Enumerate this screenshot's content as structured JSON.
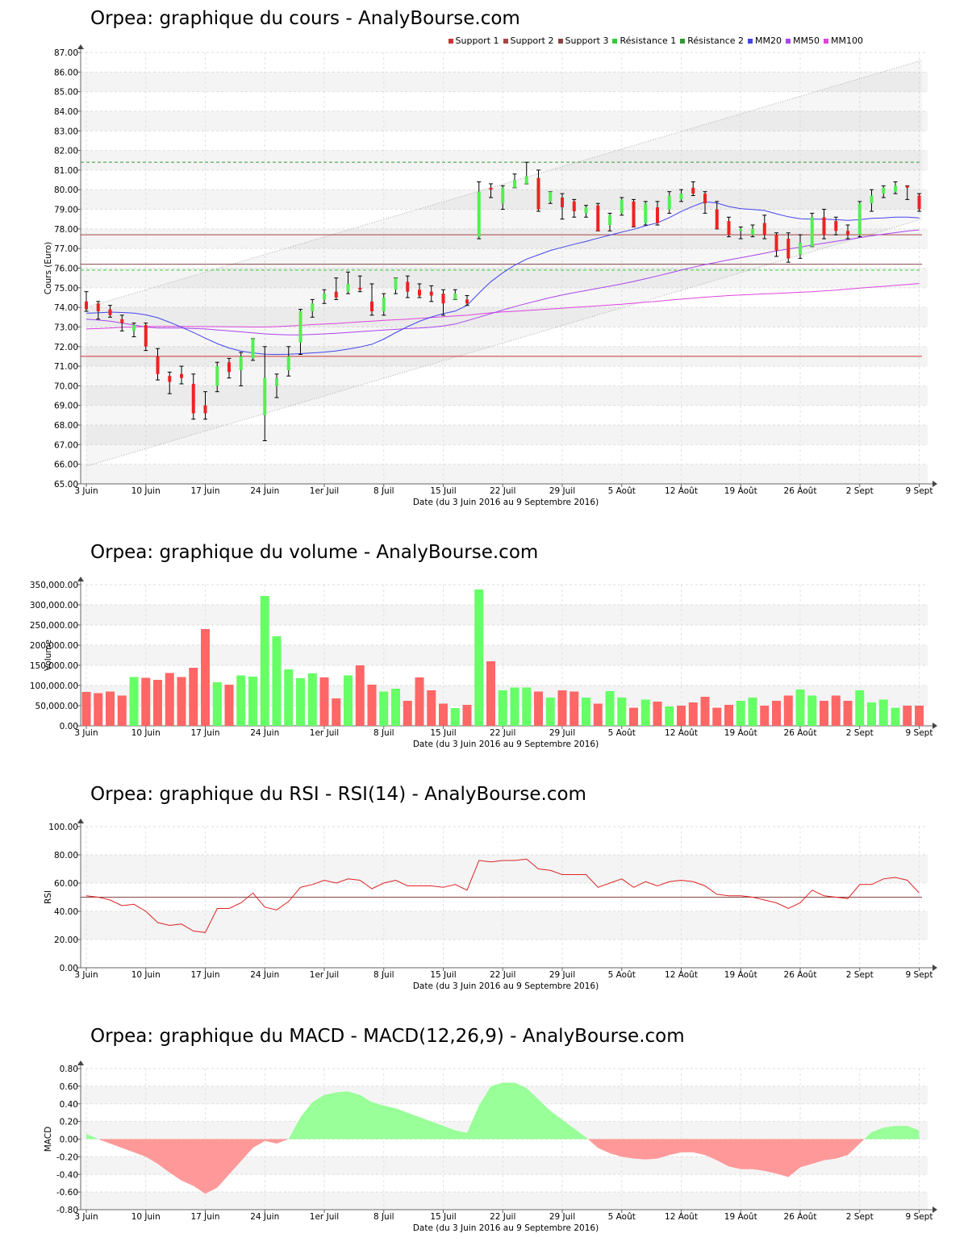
{
  "colors": {
    "bull": "#55ee55",
    "bear": "#ee2222",
    "vol_up": "#66ff66",
    "vol_down": "#ff6666",
    "support1": "#cc3333",
    "support2": "#aa4444",
    "support3": "#884444",
    "resistance1": "#33cc33",
    "resistance2": "#339933",
    "mm20": "#4444ee",
    "mm50": "#aa44ee",
    "mm100": "#dd44dd",
    "rsi": "#dd2222",
    "macd_pos": "#99ff99",
    "macd_neg": "#ff9999"
  },
  "x_tick_labels": [
    "3 Juin",
    "10 Juin",
    "17 Juin",
    "24 Juin",
    "1er Juil",
    "8 Juil",
    "15 Juil",
    "22 Juil",
    "29 Juil",
    "5 Août",
    "12 Août",
    "19 Août",
    "26 Août",
    "2 Sept",
    "9 Sept"
  ],
  "x_tick_indices": [
    0,
    5,
    10,
    15,
    20,
    25,
    30,
    35,
    40,
    45,
    50,
    55,
    60,
    65,
    70
  ],
  "xlabel": "Date (du 3 Juin 2016 au 9 Septembre 2016)",
  "chart_data": [
    {
      "type": "candlestick",
      "title": "Orpea: graphique du cours - AnalyBourse.com",
      "ylabel": "Cours (Euro)",
      "ylim": [
        65,
        87
      ],
      "yticks": [
        "65.00",
        "66.00",
        "67.00",
        "68.00",
        "69.00",
        "70.00",
        "71.00",
        "72.00",
        "73.00",
        "74.00",
        "75.00",
        "76.00",
        "77.00",
        "78.00",
        "79.00",
        "80.00",
        "81.00",
        "82.00",
        "83.00",
        "84.00",
        "85.00",
        "86.00",
        "87.00"
      ],
      "legend": [
        "Support 1",
        "Support 2",
        "Support 3",
        "Résistance 1",
        "Résistance 2",
        "MM20",
        "MM50",
        "MM100"
      ],
      "levels": {
        "support1": 71.5,
        "support2": 77.7,
        "support3": 76.2,
        "resistance1": 75.9,
        "resistance2": 81.4
      },
      "trend_channel": {
        "upper_start": 74.0,
        "upper_end": 86.6,
        "lower_start": 65.9,
        "lower_end": 78.5
      },
      "ohlc": [
        [
          74.3,
          74.8,
          73.8,
          73.9
        ],
        [
          74.2,
          74.3,
          73.4,
          73.8
        ],
        [
          73.9,
          74.1,
          73.5,
          73.6
        ],
        [
          73.4,
          73.6,
          72.8,
          73.2
        ],
        [
          72.8,
          73.2,
          72.5,
          73.1
        ],
        [
          73.1,
          73.2,
          71.8,
          72.0
        ],
        [
          71.5,
          71.9,
          70.3,
          70.6
        ],
        [
          70.5,
          70.7,
          69.6,
          70.2
        ],
        [
          70.6,
          71.0,
          70.1,
          70.4
        ],
        [
          70.1,
          70.6,
          68.3,
          68.6
        ],
        [
          69.0,
          69.7,
          68.3,
          68.6
        ],
        [
          70.0,
          71.2,
          69.7,
          71.0
        ],
        [
          71.2,
          71.4,
          70.4,
          70.7
        ],
        [
          70.8,
          71.7,
          70.0,
          71.5
        ],
        [
          71.4,
          72.4,
          71.3,
          72.4
        ],
        [
          68.5,
          72.0,
          67.2,
          70.4
        ],
        [
          70.0,
          70.6,
          69.4,
          70.4
        ],
        [
          70.8,
          72.0,
          70.5,
          71.5
        ],
        [
          72.2,
          73.9,
          71.6,
          73.8
        ],
        [
          73.8,
          74.4,
          73.5,
          74.2
        ],
        [
          74.4,
          74.9,
          74.2,
          74.7
        ],
        [
          74.8,
          75.5,
          74.4,
          74.5
        ],
        [
          74.8,
          75.8,
          74.7,
          75.2
        ],
        [
          75.0,
          75.6,
          74.8,
          74.9
        ],
        [
          74.3,
          75.2,
          73.6,
          73.8
        ],
        [
          73.8,
          74.7,
          73.6,
          74.5
        ],
        [
          74.9,
          75.5,
          74.7,
          75.5
        ],
        [
          75.3,
          75.6,
          74.5,
          74.8
        ],
        [
          74.9,
          75.2,
          74.5,
          74.6
        ],
        [
          74.8,
          75.1,
          74.3,
          74.6
        ],
        [
          74.7,
          74.9,
          73.6,
          74.2
        ],
        [
          74.4,
          74.9,
          74.4,
          74.7
        ],
        [
          74.4,
          74.6,
          74.1,
          74.2
        ],
        [
          77.6,
          80.4,
          77.5,
          79.9
        ],
        [
          80.1,
          80.3,
          79.6,
          80.0
        ],
        [
          79.3,
          80.2,
          79.0,
          80.1
        ],
        [
          80.1,
          80.8,
          80.1,
          80.5
        ],
        [
          80.3,
          81.4,
          80.3,
          80.7
        ],
        [
          80.6,
          81.0,
          78.9,
          79.0
        ],
        [
          79.4,
          79.9,
          79.3,
          79.9
        ],
        [
          79.6,
          79.8,
          78.5,
          79.1
        ],
        [
          79.4,
          79.5,
          78.6,
          78.9
        ],
        [
          78.8,
          79.2,
          78.6,
          79.1
        ],
        [
          79.2,
          79.3,
          77.9,
          77.9
        ],
        [
          78.2,
          78.8,
          77.9,
          78.7
        ],
        [
          78.8,
          79.6,
          78.7,
          79.5
        ],
        [
          79.4,
          79.5,
          78.1,
          78.1
        ],
        [
          78.3,
          79.4,
          78.2,
          79.3
        ],
        [
          79.1,
          79.4,
          78.2,
          78.3
        ],
        [
          79.0,
          79.9,
          78.8,
          79.7
        ],
        [
          79.5,
          80.0,
          79.4,
          79.8
        ],
        [
          80.1,
          80.4,
          79.7,
          79.8
        ],
        [
          79.8,
          79.9,
          78.8,
          79.3
        ],
        [
          79.0,
          79.4,
          78.0,
          78.0
        ],
        [
          78.4,
          78.6,
          77.6,
          77.7
        ],
        [
          77.9,
          78.1,
          77.5,
          78.0
        ],
        [
          77.7,
          78.2,
          77.6,
          78.0
        ],
        [
          78.3,
          78.7,
          77.5,
          77.7
        ],
        [
          77.7,
          77.8,
          76.6,
          76.9
        ],
        [
          77.5,
          77.8,
          76.3,
          76.5
        ],
        [
          76.7,
          77.7,
          76.5,
          77.3
        ],
        [
          77.1,
          78.8,
          77.1,
          78.6
        ],
        [
          78.6,
          79.0,
          77.5,
          77.7
        ],
        [
          78.4,
          78.6,
          77.7,
          77.9
        ],
        [
          77.9,
          78.2,
          77.5,
          77.7
        ],
        [
          77.7,
          79.4,
          77.6,
          79.3
        ],
        [
          79.3,
          80.0,
          78.9,
          79.7
        ],
        [
          79.8,
          80.2,
          79.6,
          80.1
        ],
        [
          79.9,
          80.4,
          79.8,
          80.2
        ],
        [
          80.2,
          80.2,
          79.5,
          80.1
        ],
        [
          79.7,
          79.8,
          78.9,
          79.0
        ]
      ],
      "mm20": [
        73.7,
        73.72,
        73.76,
        73.74,
        73.71,
        73.62,
        73.47,
        73.24,
        72.99,
        72.72,
        72.43,
        72.15,
        71.93,
        71.77,
        71.68,
        71.61,
        71.6,
        71.61,
        71.64,
        71.68,
        71.72,
        71.78,
        71.87,
        71.98,
        72.12,
        72.38,
        72.71,
        73.02,
        73.29,
        73.51,
        73.68,
        73.81,
        74.1,
        74.73,
        75.31,
        75.76,
        76.15,
        76.46,
        76.68,
        76.9,
        77.06,
        77.22,
        77.36,
        77.53,
        77.68,
        77.84,
        77.98,
        78.16,
        78.31,
        78.58,
        78.89,
        79.16,
        79.39,
        79.32,
        79.14,
        79.03,
        78.99,
        78.94,
        78.77,
        78.62,
        78.52,
        78.5,
        78.5,
        78.47,
        78.44,
        78.47,
        78.54,
        78.56,
        78.6,
        78.6,
        78.56
      ],
      "mm50": [
        73.4,
        73.35,
        73.3,
        73.2,
        73.1,
        73.0,
        72.95,
        72.95,
        72.95,
        72.92,
        72.9,
        72.85,
        72.8,
        72.75,
        72.7,
        72.65,
        72.62,
        72.6,
        72.6,
        72.62,
        72.65,
        72.68,
        72.72,
        72.76,
        72.8,
        72.84,
        72.88,
        72.92,
        72.95,
        72.99,
        73.05,
        73.15,
        73.32,
        73.5,
        73.68,
        73.86,
        74.04,
        74.2,
        74.35,
        74.5,
        74.63,
        74.75,
        74.86,
        74.97,
        75.08,
        75.2,
        75.32,
        75.46,
        75.6,
        75.75,
        75.9,
        76.05,
        76.18,
        76.3,
        76.42,
        76.53,
        76.64,
        76.76,
        76.88,
        76.98,
        77.07,
        77.18,
        77.27,
        77.37,
        77.46,
        77.55,
        77.65,
        77.73,
        77.81,
        77.89,
        77.95
      ],
      "mm100": [
        72.9,
        72.92,
        72.95,
        72.98,
        73.0,
        73.02,
        73.03,
        73.03,
        73.03,
        73.02,
        73.02,
        73.02,
        73.01,
        73.01,
        73.0,
        73.0,
        73.02,
        73.05,
        73.08,
        73.12,
        73.15,
        73.18,
        73.22,
        73.26,
        73.3,
        73.34,
        73.37,
        73.4,
        73.44,
        73.48,
        73.52,
        73.56,
        73.6,
        73.66,
        73.72,
        73.77,
        73.8,
        73.84,
        73.88,
        73.92,
        73.96,
        74.0,
        74.04,
        74.08,
        74.12,
        74.16,
        74.21,
        74.26,
        74.31,
        74.37,
        74.42,
        74.47,
        74.52,
        74.56,
        74.6,
        74.63,
        74.66,
        74.69,
        74.71,
        74.74,
        74.77,
        74.8,
        74.84,
        74.88,
        74.93,
        74.98,
        75.03,
        75.07,
        75.12,
        75.17,
        75.22
      ]
    },
    {
      "type": "bar",
      "title": "Orpea: graphique du volume - AnalyBourse.com",
      "ylabel": "Volume",
      "ylim": [
        0,
        350000
      ],
      "yticks": [
        "0.00",
        "50,000.00",
        "100,000.00",
        "150,000.00",
        "200,000.00",
        "250,000.00",
        "300,000.00",
        "350,000.00"
      ],
      "values": [
        84000,
        81000,
        85000,
        75000,
        121000,
        119000,
        114000,
        131000,
        121000,
        144000,
        240000,
        108000,
        102000,
        125000,
        122000,
        322000,
        222000,
        140000,
        118000,
        130000,
        120000,
        68000,
        125000,
        150000,
        102000,
        85000,
        92000,
        62000,
        120000,
        88000,
        55000,
        44000,
        52000,
        338000,
        160000,
        88000,
        95000,
        95000,
        85000,
        70000,
        88000,
        85000,
        70000,
        55000,
        86000,
        70000,
        45000,
        65000,
        60000,
        48000,
        50000,
        58000,
        72000,
        45000,
        52000,
        62000,
        70000,
        50000,
        62000,
        75000,
        90000,
        75000,
        62000,
        75000,
        62000,
        88000,
        58000,
        65000,
        45000,
        50000,
        50000
      ],
      "up": [
        false,
        false,
        false,
        false,
        true,
        false,
        false,
        false,
        false,
        false,
        false,
        true,
        false,
        true,
        true,
        true,
        true,
        true,
        true,
        true,
        false,
        false,
        true,
        false,
        false,
        true,
        true,
        false,
        false,
        false,
        false,
        true,
        false,
        true,
        false,
        true,
        true,
        true,
        false,
        true,
        false,
        false,
        true,
        false,
        true,
        true,
        false,
        true,
        false,
        true,
        false,
        false,
        false,
        false,
        false,
        true,
        true,
        false,
        false,
        false,
        true,
        true,
        false,
        false,
        false,
        true,
        true,
        true,
        true,
        false,
        false
      ]
    },
    {
      "type": "line",
      "title": "Orpea: graphique du RSI - RSI(14) - AnalyBourse.com",
      "ylabel": "RSI",
      "ylim": [
        0,
        100
      ],
      "yticks": [
        "0.00",
        "20.00",
        "40.00",
        "60.00",
        "80.00",
        "100.00"
      ],
      "reference_line": 50,
      "values": [
        51,
        50,
        48,
        44,
        45,
        40,
        32,
        30,
        31,
        26,
        25,
        42,
        42,
        46,
        53,
        43,
        41,
        47,
        57,
        59,
        62,
        60,
        63,
        62,
        56,
        60,
        62,
        58,
        58,
        58,
        57,
        59,
        55,
        76,
        75,
        76,
        76,
        77,
        70,
        69,
        66,
        66,
        66,
        57,
        60,
        63,
        57,
        61,
        58,
        61,
        62,
        61,
        58,
        52,
        51,
        51,
        50,
        48,
        46,
        42,
        46,
        55,
        51,
        50,
        49,
        59,
        59,
        63,
        64,
        62,
        53
      ]
    },
    {
      "type": "area",
      "title": "Orpea: graphique du MACD - MACD(12,26,9) - AnalyBourse.com",
      "ylabel": "MACD",
      "ylim": [
        -0.8,
        0.8
      ],
      "yticks": [
        "-0.80",
        "-0.60",
        "-0.40",
        "-0.20",
        "0.00",
        "0.20",
        "0.40",
        "0.60",
        "0.80"
      ],
      "values": [
        0.06,
        0.0,
        -0.05,
        -0.1,
        -0.15,
        -0.2,
        -0.28,
        -0.38,
        -0.47,
        -0.53,
        -0.62,
        -0.55,
        -0.4,
        -0.25,
        -0.1,
        -0.02,
        -0.05,
        0.0,
        0.25,
        0.42,
        0.5,
        0.53,
        0.54,
        0.5,
        0.42,
        0.38,
        0.35,
        0.3,
        0.25,
        0.2,
        0.15,
        0.1,
        0.07,
        0.38,
        0.6,
        0.64,
        0.64,
        0.58,
        0.45,
        0.32,
        0.22,
        0.12,
        0.02,
        -0.1,
        -0.16,
        -0.2,
        -0.22,
        -0.23,
        -0.22,
        -0.18,
        -0.15,
        -0.15,
        -0.18,
        -0.24,
        -0.31,
        -0.34,
        -0.34,
        -0.36,
        -0.39,
        -0.43,
        -0.32,
        -0.28,
        -0.24,
        -0.22,
        -0.18,
        -0.05,
        0.08,
        0.13,
        0.15,
        0.15,
        0.1
      ]
    }
  ]
}
